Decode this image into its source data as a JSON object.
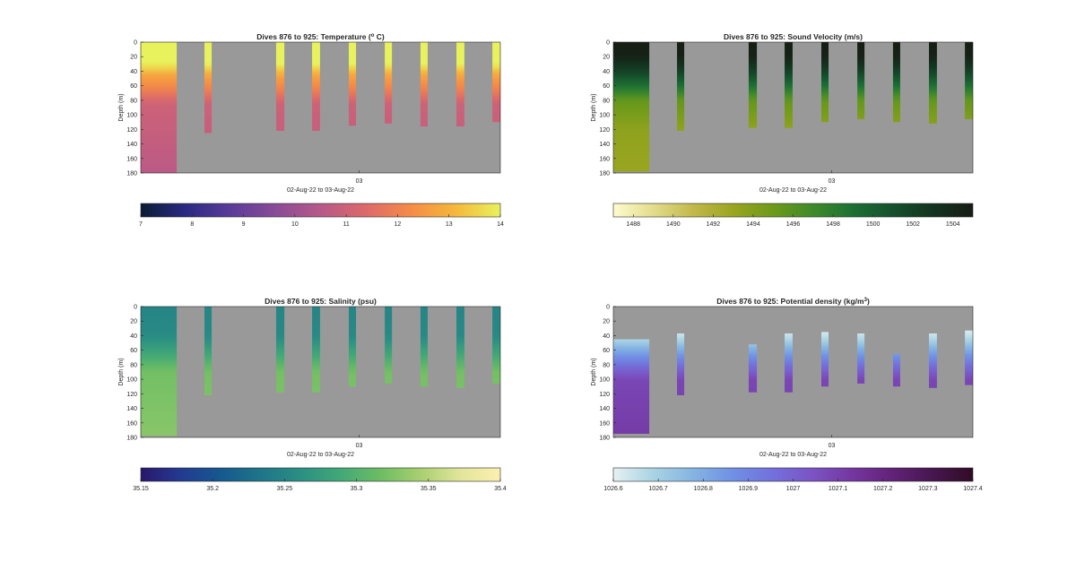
{
  "chart_data": [
    {
      "type": "heatmap",
      "title": {
        "prefix": "Dives 876 to 925: Temperature (",
        "sup": "o",
        "suffix": " C)"
      },
      "ylabel": "Depth (m)",
      "xlabel": "02-Aug-22 to 03-Aug-22",
      "xtick_label": "03",
      "xtick_value_hours": 24,
      "xlim_hours": [
        15.5,
        29.5
      ],
      "ylim": [
        0,
        180
      ],
      "yticks": [
        0,
        20,
        40,
        60,
        80,
        100,
        120,
        140,
        160,
        180
      ],
      "colorbar": {
        "range": [
          7,
          14
        ],
        "ticks": [
          7,
          8,
          9,
          10,
          11,
          12,
          13,
          14
        ],
        "tick_labels": [
          "7",
          "8",
          "9",
          "10",
          "11",
          "12",
          "13",
          "14"
        ],
        "colors": [
          "#0a1c33",
          "#2a2a83",
          "#5b3b9a",
          "#8a4b98",
          "#b75889",
          "#dd6a6a",
          "#f68b45",
          "#f5b83b",
          "#e8f25c"
        ]
      },
      "profile": [
        [
          0,
          14
        ],
        [
          30,
          14
        ],
        [
          45,
          12.8
        ],
        [
          65,
          12
        ],
        [
          85,
          11
        ],
        [
          180,
          10.6
        ]
      ],
      "dives": [
        {
          "t": [
            15.5,
            16.9
          ],
          "depth": [
            0,
            180
          ]
        },
        {
          "t": [
            17.98,
            18.26
          ],
          "depth": [
            0,
            125
          ]
        },
        {
          "t": [
            20.77,
            21.09
          ],
          "depth": [
            0,
            122
          ]
        },
        {
          "t": [
            22.17,
            22.48
          ],
          "depth": [
            0,
            122
          ]
        },
        {
          "t": [
            23.6,
            23.88
          ],
          "depth": [
            0,
            115
          ]
        },
        {
          "t": [
            25.0,
            25.28
          ],
          "depth": [
            0,
            112
          ]
        },
        {
          "t": [
            26.39,
            26.67
          ],
          "depth": [
            0,
            116
          ]
        },
        {
          "t": [
            27.79,
            28.1
          ],
          "depth": [
            0,
            116
          ]
        },
        {
          "t": [
            29.19,
            29.5
          ],
          "depth": [
            0,
            110
          ]
        }
      ]
    },
    {
      "type": "heatmap",
      "title": {
        "prefix": "Dives 876 to 925: Sound Velocity (m/s)",
        "sup": "",
        "suffix": ""
      },
      "ylabel": "Depth (m)",
      "xlabel": "02-Aug-22 to 03-Aug-22",
      "xtick_label": "03",
      "xtick_value_hours": 24,
      "xlim_hours": [
        15.5,
        29.5
      ],
      "ylim": [
        0,
        180
      ],
      "yticks": [
        0,
        20,
        40,
        60,
        80,
        100,
        120,
        140,
        160,
        180
      ],
      "colorbar": {
        "range": [
          1487,
          1505
        ],
        "ticks": [
          1488,
          1490,
          1492,
          1494,
          1496,
          1498,
          1500,
          1502,
          1504
        ],
        "tick_labels": [
          "1488",
          "1490",
          "1492",
          "1494",
          "1496",
          "1498",
          "1500",
          "1502",
          "1504"
        ],
        "colors": [
          "#fefccf",
          "#e3dc8c",
          "#c2b84a",
          "#9aa51f",
          "#6e9a1a",
          "#3f8a2a",
          "#1c7034",
          "#15502c",
          "#13331f",
          "#171d14"
        ]
      },
      "profile": [
        [
          0,
          1505
        ],
        [
          20,
          1504.5
        ],
        [
          40,
          1502
        ],
        [
          60,
          1499
        ],
        [
          80,
          1495.5
        ],
        [
          120,
          1493.5
        ],
        [
          180,
          1493
        ]
      ],
      "dives": [
        {
          "t": [
            15.5,
            16.9
          ],
          "depth": [
            0,
            178
          ]
        },
        {
          "t": [
            17.98,
            18.26
          ],
          "depth": [
            0,
            122
          ]
        },
        {
          "t": [
            20.77,
            21.09
          ],
          "depth": [
            0,
            118
          ]
        },
        {
          "t": [
            22.17,
            22.48
          ],
          "depth": [
            0,
            118
          ]
        },
        {
          "t": [
            23.6,
            23.88
          ],
          "depth": [
            0,
            110
          ]
        },
        {
          "t": [
            25.0,
            25.28
          ],
          "depth": [
            0,
            106
          ]
        },
        {
          "t": [
            26.39,
            26.67
          ],
          "depth": [
            0,
            110
          ]
        },
        {
          "t": [
            27.79,
            28.1
          ],
          "depth": [
            0,
            112
          ]
        },
        {
          "t": [
            29.19,
            29.5
          ],
          "depth": [
            0,
            106
          ]
        }
      ]
    },
    {
      "type": "heatmap",
      "title": {
        "prefix": "Dives 876 to 925: Salinity (psu)",
        "sup": "",
        "suffix": ""
      },
      "ylabel": "Depth (m)",
      "xlabel": "02-Aug-22 to 03-Aug-22",
      "xtick_label": "03",
      "xtick_value_hours": 24,
      "xlim_hours": [
        15.5,
        29.5
      ],
      "ylim": [
        0,
        180
      ],
      "yticks": [
        0,
        20,
        40,
        60,
        80,
        100,
        120,
        140,
        160,
        180
      ],
      "colorbar": {
        "range": [
          35.15,
          35.4
        ],
        "ticks": [
          35.15,
          35.2,
          35.25,
          35.3,
          35.35,
          35.4
        ],
        "tick_labels": [
          "35.15",
          "35.2",
          "35.25",
          "35.3",
          "35.35",
          "35.4"
        ],
        "colors": [
          "#29186b",
          "#233a91",
          "#15598f",
          "#1e7589",
          "#2b8f83",
          "#42a877",
          "#6cbd63",
          "#a9cf70",
          "#e1e59a",
          "#fdf0b0"
        ]
      },
      "profile": [
        [
          0,
          35.25
        ],
        [
          40,
          35.255
        ],
        [
          60,
          35.28
        ],
        [
          90,
          35.32
        ],
        [
          180,
          35.33
        ]
      ],
      "dives": [
        {
          "t": [
            15.5,
            16.9
          ],
          "depth": [
            0,
            178
          ]
        },
        {
          "t": [
            17.98,
            18.26
          ],
          "depth": [
            0,
            122
          ]
        },
        {
          "t": [
            20.77,
            21.09
          ],
          "depth": [
            0,
            118
          ]
        },
        {
          "t": [
            22.17,
            22.48
          ],
          "depth": [
            0,
            118
          ]
        },
        {
          "t": [
            23.6,
            23.88
          ],
          "depth": [
            0,
            110
          ]
        },
        {
          "t": [
            25.0,
            25.28
          ],
          "depth": [
            0,
            106
          ]
        },
        {
          "t": [
            26.39,
            26.67
          ],
          "depth": [
            0,
            110
          ]
        },
        {
          "t": [
            27.79,
            28.1
          ],
          "depth": [
            0,
            112
          ]
        },
        {
          "t": [
            29.19,
            29.5
          ],
          "depth": [
            0,
            106
          ]
        }
      ]
    },
    {
      "type": "heatmap",
      "title": {
        "prefix": "Dives 876 to 925: Potential density (kg/m",
        "sup": "3",
        "suffix": ")"
      },
      "ylabel": "Depth (m)",
      "xlabel": "02-Aug-22 to 03-Aug-22",
      "xtick_label": "03",
      "xtick_value_hours": 24,
      "xlim_hours": [
        15.5,
        29.5
      ],
      "ylim": [
        0,
        180
      ],
      "yticks": [
        0,
        20,
        40,
        60,
        80,
        100,
        120,
        140,
        160,
        180
      ],
      "colorbar": {
        "range": [
          1026.6,
          1027.4
        ],
        "ticks": [
          1026.6,
          1026.7,
          1026.8,
          1026.9,
          1027,
          1027.1,
          1027.2,
          1027.3,
          1027.4
        ],
        "tick_labels": [
          "1026.6",
          "1026.7",
          "1026.8",
          "1026.9",
          "1027",
          "1027.1",
          "1027.2",
          "1027.3",
          "1027.4"
        ],
        "colors": [
          "#e6f1f1",
          "#a9d3e4",
          "#85b4e2",
          "#6f90e5",
          "#7370dc",
          "#7c52c4",
          "#74369f",
          "#612277",
          "#471650",
          "#300c24"
        ]
      },
      "profile": [
        [
          30,
          1026.6
        ],
        [
          45,
          1026.68
        ],
        [
          60,
          1026.8
        ],
        [
          80,
          1026.95
        ],
        [
          100,
          1027.08
        ],
        [
          180,
          1027.12
        ]
      ],
      "dives": [
        {
          "t": [
            15.5,
            16.9
          ],
          "depth": [
            45,
            175
          ]
        },
        {
          "t": [
            17.98,
            18.26
          ],
          "depth": [
            37,
            122
          ]
        },
        {
          "t": [
            20.77,
            21.09
          ],
          "depth": [
            52,
            118
          ]
        },
        {
          "t": [
            22.17,
            22.48
          ],
          "depth": [
            37,
            118
          ]
        },
        {
          "t": [
            23.6,
            23.88
          ],
          "depth": [
            35,
            110
          ]
        },
        {
          "t": [
            25.0,
            25.28
          ],
          "depth": [
            37,
            106
          ]
        },
        {
          "t": [
            26.39,
            26.67
          ],
          "depth": [
            65,
            110
          ]
        },
        {
          "t": [
            27.79,
            28.1
          ],
          "depth": [
            37,
            112
          ]
        },
        {
          "t": [
            29.19,
            29.5
          ],
          "depth": [
            33,
            108
          ]
        }
      ]
    }
  ]
}
